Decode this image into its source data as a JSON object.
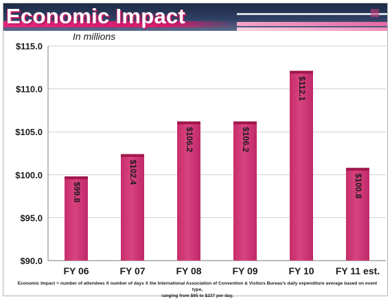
{
  "slide": {
    "title": "Economic Impact",
    "subtitle": "In millions",
    "footnote_line1": "Economic Impact = number of attendees X number of days X the International Association of Convention & Visitors Bureau's daily expenditure average based on event type,",
    "footnote_line2": "ranging from $65 to $237 per day."
  },
  "colors": {
    "bar_fill": "#d8437f",
    "bar_top": "#a0184c",
    "title_band": "#1c2a45",
    "accent_pink": "#e0287a"
  },
  "chart_data": {
    "type": "bar",
    "categories": [
      "FY 06",
      "FY 07",
      "FY 08",
      "FY 09",
      "FY 10",
      "FY 11 est."
    ],
    "values": [
      99.8,
      102.4,
      106.2,
      106.2,
      112.1,
      100.8
    ],
    "value_labels": [
      "$99.8",
      "$102.4",
      "$106.2",
      "$106.2",
      "$112.1",
      "$100.8"
    ],
    "y_ticks": [
      90.0,
      95.0,
      100.0,
      105.0,
      110.0,
      115.0
    ],
    "y_tick_labels": [
      "$90.0",
      "$95.0",
      "$100.0",
      "$105.0",
      "$110.0",
      "$115.0"
    ],
    "ylim": [
      90,
      115
    ],
    "grid": true,
    "legend": "none",
    "title": "Economic Impact",
    "subtitle": "In millions",
    "xlabel": "",
    "ylabel": ""
  }
}
